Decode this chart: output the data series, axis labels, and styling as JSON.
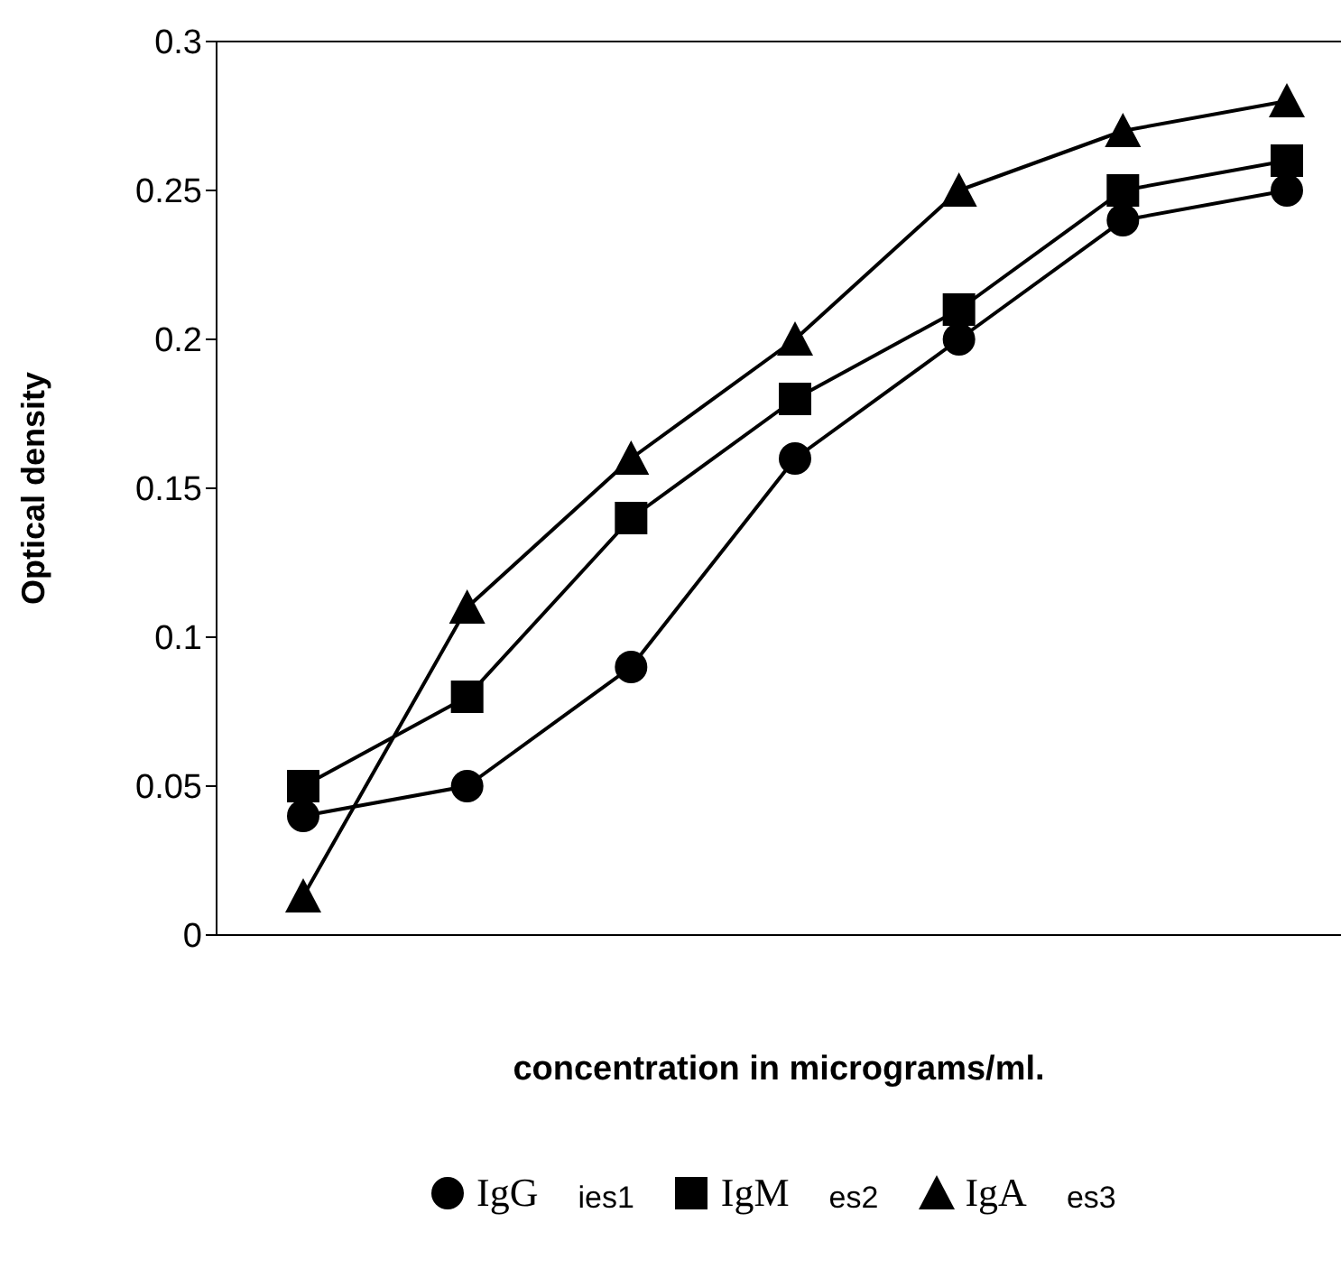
{
  "chart_data": {
    "type": "line",
    "xlabel": "concentration in micrograms/ml.",
    "ylabel": "Optical density",
    "categories": [
      null,
      null,
      null,
      null,
      null,
      null,
      null
    ],
    "ylim": [
      0,
      0.3
    ],
    "yticks": [
      0,
      0.05,
      0.1,
      0.15,
      0.2,
      0.25,
      0.3
    ],
    "grid": false,
    "legend": "bottom",
    "annotations": [
      "ies1",
      "es2",
      "es3"
    ],
    "series": [
      {
        "name": "IgG",
        "color": "#000000",
        "marker": "circle",
        "values": [
          0.04,
          0.05,
          0.09,
          0.16,
          0.2,
          0.24,
          0.25
        ]
      },
      {
        "name": "IgM",
        "color": "#000000",
        "marker": "square",
        "values": [
          0.05,
          0.08,
          0.14,
          0.18,
          0.21,
          0.25,
          0.26
        ]
      },
      {
        "name": "IgA",
        "color": "#000000",
        "marker": "triangle",
        "values": [
          0.013,
          0.11,
          0.16,
          0.2,
          0.25,
          0.27,
          0.28
        ]
      }
    ]
  }
}
